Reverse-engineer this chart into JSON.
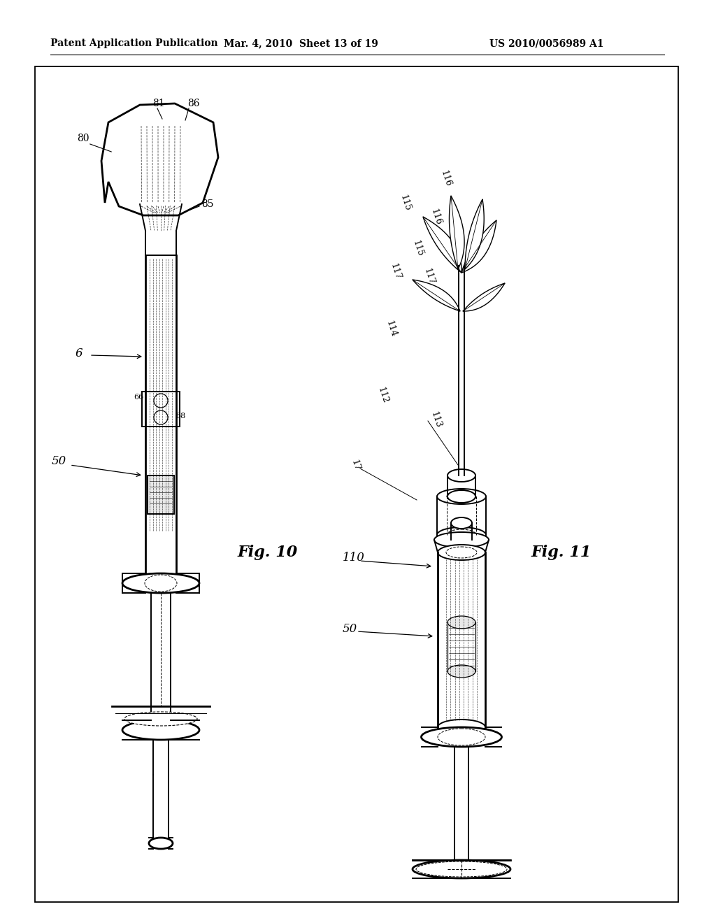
{
  "background_color": "#ffffff",
  "header_left": "Patent Application Publication",
  "header_center": "Mar. 4, 2010  Sheet 13 of 19",
  "header_right": "US 2010/0056989 A1",
  "fig10_label": "Fig. 10",
  "fig11_label": "Fig. 11",
  "text_color": "#000000",
  "line_color": "#000000"
}
